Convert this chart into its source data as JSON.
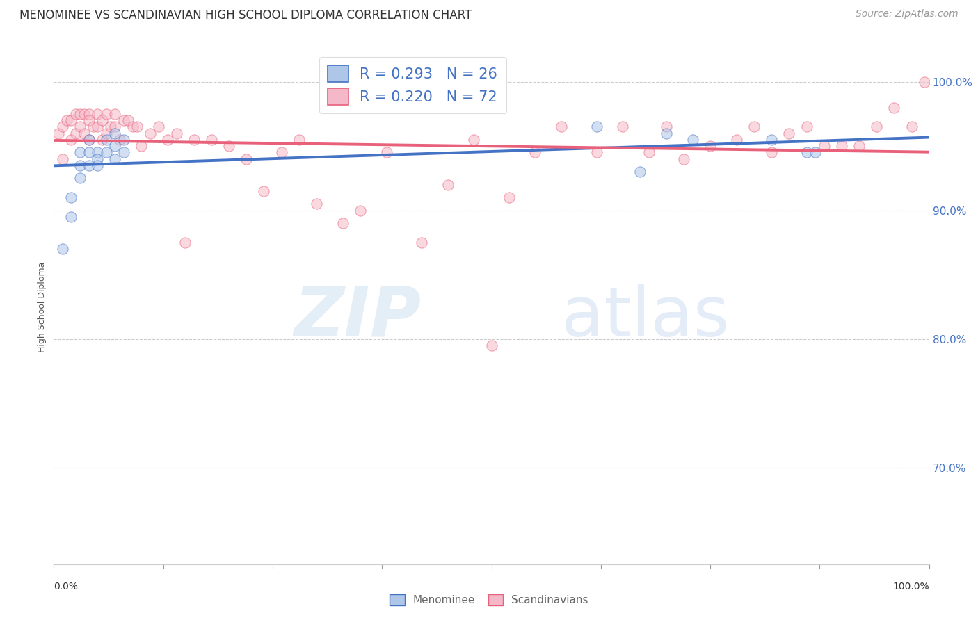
{
  "title": "MENOMINEE VS SCANDINAVIAN HIGH SCHOOL DIPLOMA CORRELATION CHART",
  "source": "Source: ZipAtlas.com",
  "ylabel": "High School Diploma",
  "xlim": [
    0.0,
    1.0
  ],
  "ylim": [
    0.625,
    1.025
  ],
  "menominee_R": 0.293,
  "menominee_N": 26,
  "scandinavian_R": 0.22,
  "scandinavian_N": 72,
  "menominee_color": "#aec6e8",
  "scandinavian_color": "#f5b8c8",
  "menominee_line_color": "#4472c4",
  "scandinavian_line_color": "#e8607a",
  "menominee_x": [
    0.01,
    0.02,
    0.02,
    0.03,
    0.03,
    0.03,
    0.04,
    0.04,
    0.04,
    0.05,
    0.05,
    0.05,
    0.06,
    0.06,
    0.07,
    0.07,
    0.07,
    0.08,
    0.08,
    0.62,
    0.67,
    0.7,
    0.73,
    0.82,
    0.86,
    0.87
  ],
  "menominee_y": [
    0.87,
    0.91,
    0.895,
    0.945,
    0.935,
    0.925,
    0.955,
    0.945,
    0.935,
    0.945,
    0.94,
    0.935,
    0.955,
    0.945,
    0.96,
    0.95,
    0.94,
    0.955,
    0.945,
    0.965,
    0.93,
    0.96,
    0.955,
    0.955,
    0.945,
    0.945
  ],
  "scandinavian_x": [
    0.005,
    0.01,
    0.01,
    0.015,
    0.02,
    0.02,
    0.025,
    0.025,
    0.03,
    0.03,
    0.035,
    0.035,
    0.04,
    0.04,
    0.04,
    0.045,
    0.05,
    0.05,
    0.055,
    0.055,
    0.06,
    0.06,
    0.065,
    0.07,
    0.07,
    0.075,
    0.08,
    0.085,
    0.09,
    0.095,
    0.1,
    0.11,
    0.12,
    0.13,
    0.14,
    0.15,
    0.16,
    0.18,
    0.2,
    0.22,
    0.24,
    0.26,
    0.28,
    0.3,
    0.33,
    0.35,
    0.38,
    0.42,
    0.45,
    0.48,
    0.5,
    0.52,
    0.55,
    0.58,
    0.62,
    0.65,
    0.68,
    0.7,
    0.72,
    0.75,
    0.78,
    0.8,
    0.82,
    0.84,
    0.86,
    0.88,
    0.9,
    0.92,
    0.94,
    0.96,
    0.98,
    0.995
  ],
  "scandinavian_y": [
    0.96,
    0.965,
    0.94,
    0.97,
    0.97,
    0.955,
    0.975,
    0.96,
    0.975,
    0.965,
    0.975,
    0.96,
    0.975,
    0.97,
    0.955,
    0.965,
    0.975,
    0.965,
    0.97,
    0.955,
    0.975,
    0.96,
    0.965,
    0.975,
    0.965,
    0.955,
    0.97,
    0.97,
    0.965,
    0.965,
    0.95,
    0.96,
    0.965,
    0.955,
    0.96,
    0.875,
    0.955,
    0.955,
    0.95,
    0.94,
    0.915,
    0.945,
    0.955,
    0.905,
    0.89,
    0.9,
    0.945,
    0.875,
    0.92,
    0.955,
    0.795,
    0.91,
    0.945,
    0.965,
    0.945,
    0.965,
    0.945,
    0.965,
    0.94,
    0.95,
    0.955,
    0.965,
    0.945,
    0.96,
    0.965,
    0.95,
    0.95,
    0.95,
    0.965,
    0.98,
    0.965,
    1.0
  ],
  "watermark_zip": "ZIP",
  "watermark_atlas": "atlas",
  "background_color": "#ffffff",
  "grid_color": "#cccccc",
  "ytick_vals": [
    0.7,
    0.8,
    0.9,
    1.0
  ],
  "ytick_labels": [
    "70.0%",
    "80.0%",
    "90.0%",
    "100.0%"
  ],
  "legend_fontsize": 15,
  "title_fontsize": 12,
  "source_fontsize": 10,
  "marker_size": 120,
  "marker_alpha": 0.55,
  "line_width": 2.8
}
